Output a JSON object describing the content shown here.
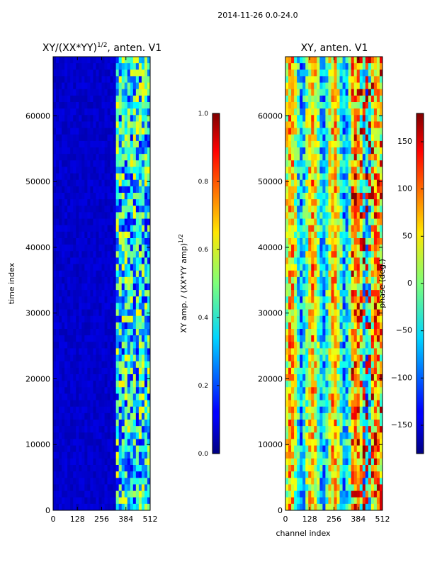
{
  "figure_title": "2014-11-26 0.0-24.0",
  "chart_data": [
    {
      "type": "heatmap",
      "title_main": "XY/(XX*YY)",
      "title_sup": "1/2",
      "title_tail": ", anten. V1",
      "xlabel": "",
      "ylabel": "time index",
      "xlim": [
        0,
        512
      ],
      "ylim": [
        0,
        69000
      ],
      "xticks": [
        "0",
        "128",
        "256",
        "384",
        "512"
      ],
      "yticks": [
        "0",
        "10000",
        "20000",
        "30000",
        "40000",
        "50000",
        "60000"
      ],
      "colorbar": {
        "label": "XY amp. / (XX*YY amp)",
        "label_sup": "1/2",
        "range": [
          0.0,
          1.0
        ],
        "ticks": [
          "0.0",
          "0.2",
          "0.4",
          "0.6",
          "0.8",
          "1.0"
        ]
      },
      "colormap": "jet",
      "background_level": 0.05,
      "active_channel_range": [
        330,
        512
      ]
    },
    {
      "type": "heatmap",
      "title": "XY, anten. V1",
      "xlabel": "channel index",
      "ylabel": "",
      "xlim": [
        0,
        512
      ],
      "ylim": [
        0,
        69000
      ],
      "xticks": [
        "0",
        "128",
        "256",
        "384",
        "512"
      ],
      "yticks": [
        "0",
        "10000",
        "20000",
        "30000",
        "40000",
        "50000",
        "60000"
      ],
      "colorbar": {
        "label": "phase (deg.)",
        "range": [
          -180,
          180
        ],
        "ticks": [
          "−150",
          "−100",
          "−50",
          "0",
          "50",
          "100",
          "150"
        ]
      },
      "colormap": "jet"
    }
  ]
}
